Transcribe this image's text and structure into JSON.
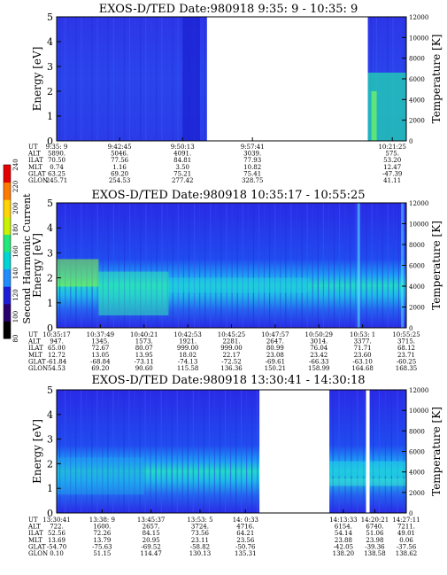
{
  "figure": {
    "colorbar": {
      "label": "Second Harmonic Current",
      "ticks": [
        "80",
        "100",
        "120",
        "140",
        "160",
        "180",
        "200",
        "220",
        "240"
      ],
      "colors": [
        "#000000",
        "#2a006e",
        "#1d1dd8",
        "#1f8cff",
        "#00d4d4",
        "#22e87a",
        "#c9f200",
        "#ffd400",
        "#ff7a00",
        "#e60000"
      ]
    },
    "panels": [
      {
        "title": "EXOS-D/TED   Date:980918   9:35: 9 - 10:35: 9",
        "ylabel_left": "Energy [eV]",
        "ylabel_right": "Temperature [K]",
        "yticks_left": [
          "0",
          "1",
          "2",
          "3",
          "4",
          "5"
        ],
        "yticks_right": [
          "0",
          "2000",
          "4000",
          "6000",
          "8000",
          "10000",
          "12000"
        ],
        "data_segments": [
          {
            "t_start": 0.0,
            "t_end": 0.43
          },
          {
            "t_start": 0.89,
            "t_end": 1.0
          }
        ],
        "orbit_table": {
          "rows": [
            "UT",
            "ALT",
            "ILAT",
            "MLT",
            "GLAT",
            "GLON"
          ],
          "columns": [
            [
              "9:35: 9",
              "5890.",
              "70.50",
              "0.74",
              "63.25",
              "245.71"
            ],
            [
              "9:42:45",
              "5046.",
              "77.56",
              "1.16",
              "69.20",
              "254.53"
            ],
            [
              "9:50:13",
              "4091.",
              "84.81",
              "3.50",
              "75.21",
              "277.42"
            ],
            [
              "9:57:41",
              "3039.",
              "77.93",
              "10.82",
              "75.41",
              "328.75"
            ],
            [
              "10:21:25",
              "575.",
              "53.20",
              "12.47",
              "-47.39",
              "41.11"
            ]
          ]
        }
      },
      {
        "title": "EXOS-D/TED   Date:980918   10:35:17 - 10:55:25",
        "ylabel_left": "Energy [eV]",
        "ylabel_right": "Temperature [K]",
        "yticks_left": [
          "0",
          "1",
          "2",
          "3",
          "4",
          "5"
        ],
        "yticks_right": [
          "0",
          "2000",
          "4000",
          "6000",
          "8000",
          "10000",
          "12000"
        ],
        "data_segments": [
          {
            "t_start": 0.0,
            "t_end": 1.0
          }
        ],
        "orbit_table": {
          "rows": [
            "UT",
            "ALT",
            "ILAT",
            "MLT",
            "GLAT",
            "GLON"
          ],
          "columns": [
            [
              "10:35:17",
              "947.",
              "65.00",
              "12.72",
              "-61.84",
              "54.53"
            ],
            [
              "10:37:49",
              "1345.",
              "72.67",
              "13.05",
              "-68.84",
              "69.20"
            ],
            [
              "10:40:21",
              "1573.",
              "80.07",
              "13.95",
              "-73.11",
              "90.60"
            ],
            [
              "10:42:53",
              "1921.",
              "999.00",
              "18.02",
              "-74.13",
              "115.58"
            ],
            [
              "10:45:25",
              "2281.",
              "999.00",
              "22.17",
              "-72.52",
              "136.36"
            ],
            [
              "10:47:57",
              "2647.",
              "80.99",
              "23.08",
              "-69.61",
              "150.21"
            ],
            [
              "10:50:29",
              "3014.",
              "76.04",
              "23.42",
              "-66.33",
              "158.99"
            ],
            [
              "10:53: 1",
              "3377.",
              "71.71",
              "23.60",
              "-63.10",
              "164.68"
            ],
            [
              "10:55:25",
              "3715.",
              "68.12",
              "23.71",
              "-60.25",
              "168.35"
            ]
          ]
        }
      },
      {
        "title": "EXOS-D/TED   Date:980918   13:30:41 - 14:30:18",
        "ylabel_left": "Energy [eV]",
        "ylabel_right": "Temperature [K]",
        "yticks_left": [
          "0",
          "1",
          "2",
          "3",
          "4",
          "5"
        ],
        "yticks_right": [
          "0",
          "2000",
          "4000",
          "6000",
          "8000",
          "10000",
          "12000"
        ],
        "data_segments": [
          {
            "t_start": 0.0,
            "t_end": 0.58
          },
          {
            "t_start": 0.78,
            "t_end": 0.885
          },
          {
            "t_start": 0.895,
            "t_end": 1.0
          }
        ],
        "orbit_table": {
          "rows": [
            "UT",
            "ALT",
            "ILAT",
            "MLT",
            "GLAT",
            "GLON"
          ],
          "columns": [
            [
              "13:30:41",
              "722.",
              "52.56",
              "13.69",
              "-54.70",
              "0.10"
            ],
            [
              "13:38: 9",
              "1600.",
              "72.26",
              "13.79",
              "-75.63",
              "51.15"
            ],
            [
              "13:45:37",
              "2657.",
              "84.15",
              "20.95",
              "-69.52",
              "114.47"
            ],
            [
              "13:53: 5",
              "3724.",
              "73.56",
              "23.11",
              "-58.82",
              "130.13"
            ],
            [
              "14: 0:33",
              "4716.",
              "64.21",
              "23.56",
              "-50.76",
              "135.31"
            ],
            [
              "14:13:33",
              "6154.",
              "54.14",
              "23.88",
              "-42.05",
              "138.20"
            ],
            [
              "14:20:21",
              "6740.",
              "51.06",
              "23.98",
              "-39.36",
              "138.58"
            ],
            [
              "14:27:11",
              "7211.",
              "49.01",
              "0.06",
              "-37.56",
              "138.62"
            ]
          ]
        }
      }
    ]
  },
  "chart_data": [
    {
      "type": "heatmap",
      "title": "EXOS-D/TED   Date:980918   9:35: 9 - 10:35: 9",
      "ylabel": "Energy [eV]",
      "y2label": "Temperature [K]",
      "ylim": [
        0,
        5
      ],
      "y2lim": [
        0,
        12000
      ],
      "x_ticks": [
        "9:35: 9",
        "9:42:45",
        "9:50:13",
        "9:57:41",
        "10:21:25"
      ],
      "colorbar_label": "Second Harmonic Current",
      "colorbar_range": [
        80,
        240
      ]
    },
    {
      "type": "heatmap",
      "title": "EXOS-D/TED   Date:980918   10:35:17 - 10:55:25",
      "ylabel": "Energy [eV]",
      "y2label": "Temperature [K]",
      "ylim": [
        0,
        5
      ],
      "y2lim": [
        0,
        12000
      ],
      "x_ticks": [
        "10:35:17",
        "10:37:49",
        "10:40:21",
        "10:42:53",
        "10:45:25",
        "10:47:57",
        "10:50:29",
        "10:53: 1",
        "10:55:25"
      ],
      "colorbar_label": "Second Harmonic Current",
      "colorbar_range": [
        80,
        240
      ]
    },
    {
      "type": "heatmap",
      "title": "EXOS-D/TED   Date:980918   13:30:41 - 14:30:18",
      "ylabel": "Energy [eV]",
      "y2label": "Temperature [K]",
      "ylim": [
        0,
        5
      ],
      "y2lim": [
        0,
        12000
      ],
      "x_ticks": [
        "13:30:41",
        "13:38: 9",
        "13:45:37",
        "13:53: 5",
        "14: 0:33",
        "14:13:33",
        "14:20:21",
        "14:27:11"
      ],
      "colorbar_label": "Second Harmonic Current",
      "colorbar_range": [
        80,
        240
      ]
    }
  ]
}
